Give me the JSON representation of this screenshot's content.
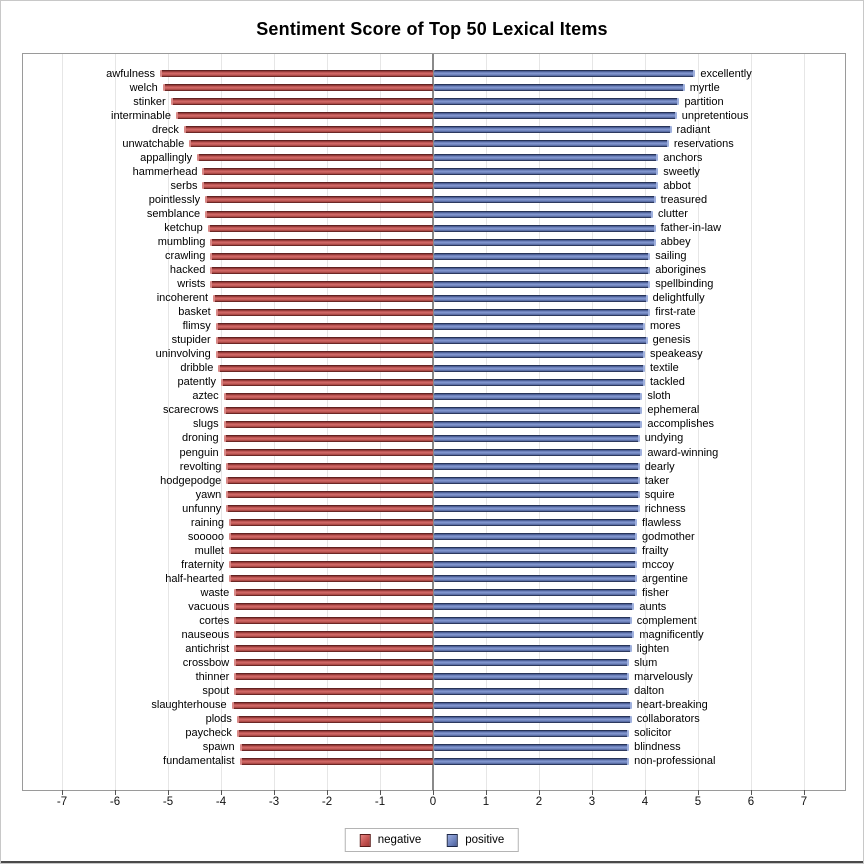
{
  "title": "Sentiment Score of Top 50 Lexical Items",
  "legend": {
    "items": [
      {
        "label": "negative",
        "color": "#c85a58"
      },
      {
        "label": "positive",
        "color": "#7388c4"
      }
    ]
  },
  "colors": {
    "negative_bar": "#c85a58",
    "positive_bar": "#7388c4",
    "zero_axis": "#8a8a8a",
    "gridline": "#e6e6e6"
  },
  "chart_data": {
    "type": "bar",
    "orientation": "horizontal-diverging",
    "title": "Sentiment Score of Top 50 Lexical Items",
    "xlabel": "",
    "ylabel": "",
    "xlim": [
      -7.75,
      7.8
    ],
    "grid": true,
    "legend_position": "bottom",
    "x_ticks": [
      -7,
      -6,
      -5,
      -4,
      -3,
      -2,
      -1,
      0,
      1,
      2,
      3,
      4,
      5,
      6,
      7
    ],
    "series": [
      {
        "name": "negative",
        "side": "left"
      },
      {
        "name": "positive",
        "side": "right"
      }
    ],
    "rows": [
      {
        "negative_word": "awfulness",
        "negative_value": -5.15,
        "positive_word": "excellently",
        "positive_value": 4.95
      },
      {
        "negative_word": "welch",
        "negative_value": -5.1,
        "positive_word": "myrtle",
        "positive_value": 4.75
      },
      {
        "negative_word": "stinker",
        "negative_value": -4.95,
        "positive_word": "partition",
        "positive_value": 4.65
      },
      {
        "negative_word": "interminable",
        "negative_value": -4.85,
        "positive_word": "unpretentious",
        "positive_value": 4.6
      },
      {
        "negative_word": "dreck",
        "negative_value": -4.7,
        "positive_word": "radiant",
        "positive_value": 4.5
      },
      {
        "negative_word": "unwatchable",
        "negative_value": -4.6,
        "positive_word": "reservations",
        "positive_value": 4.45
      },
      {
        "negative_word": "appallingly",
        "negative_value": -4.45,
        "positive_word": "anchors",
        "positive_value": 4.25
      },
      {
        "negative_word": "hammerhead",
        "negative_value": -4.35,
        "positive_word": "sweetly",
        "positive_value": 4.25
      },
      {
        "negative_word": "serbs",
        "negative_value": -4.35,
        "positive_word": "abbot",
        "positive_value": 4.25
      },
      {
        "negative_word": "pointlessly",
        "negative_value": -4.3,
        "positive_word": "treasured",
        "positive_value": 4.2
      },
      {
        "negative_word": "semblance",
        "negative_value": -4.3,
        "positive_word": "clutter",
        "positive_value": 4.15
      },
      {
        "negative_word": "ketchup",
        "negative_value": -4.25,
        "positive_word": "father-in-law",
        "positive_value": 4.2
      },
      {
        "negative_word": "mumbling",
        "negative_value": -4.2,
        "positive_word": "abbey",
        "positive_value": 4.2
      },
      {
        "negative_word": "crawling",
        "negative_value": -4.2,
        "positive_word": "sailing",
        "positive_value": 4.1
      },
      {
        "negative_word": "hacked",
        "negative_value": -4.2,
        "positive_word": "aborigines",
        "positive_value": 4.1
      },
      {
        "negative_word": "wrists",
        "negative_value": -4.2,
        "positive_word": "spellbinding",
        "positive_value": 4.1
      },
      {
        "negative_word": "incoherent",
        "negative_value": -4.15,
        "positive_word": "delightfully",
        "positive_value": 4.05
      },
      {
        "negative_word": "basket",
        "negative_value": -4.1,
        "positive_word": "first-rate",
        "positive_value": 4.1
      },
      {
        "negative_word": "flimsy",
        "negative_value": -4.1,
        "positive_word": "mores",
        "positive_value": 4.0
      },
      {
        "negative_word": "stupider",
        "negative_value": -4.1,
        "positive_word": "genesis",
        "positive_value": 4.05
      },
      {
        "negative_word": "uninvolving",
        "negative_value": -4.1,
        "positive_word": "speakeasy",
        "positive_value": 4.0
      },
      {
        "negative_word": "dribble",
        "negative_value": -4.05,
        "positive_word": "textile",
        "positive_value": 4.0
      },
      {
        "negative_word": "patently",
        "negative_value": -4.0,
        "positive_word": "tackled",
        "positive_value": 4.0
      },
      {
        "negative_word": "aztec",
        "negative_value": -3.95,
        "positive_word": "sloth",
        "positive_value": 3.95
      },
      {
        "negative_word": "scarecrows",
        "negative_value": -3.95,
        "positive_word": "ephemeral",
        "positive_value": 3.95
      },
      {
        "negative_word": "slugs",
        "negative_value": -3.95,
        "positive_word": "accomplishes",
        "positive_value": 3.95
      },
      {
        "negative_word": "droning",
        "negative_value": -3.95,
        "positive_word": "undying",
        "positive_value": 3.9
      },
      {
        "negative_word": "penguin",
        "negative_value": -3.95,
        "positive_word": "award-winning",
        "positive_value": 3.95
      },
      {
        "negative_word": "revolting",
        "negative_value": -3.9,
        "positive_word": "dearly",
        "positive_value": 3.9
      },
      {
        "negative_word": "hodgepodge",
        "negative_value": -3.9,
        "positive_word": "taker",
        "positive_value": 3.9
      },
      {
        "negative_word": "yawn",
        "negative_value": -3.9,
        "positive_word": "squire",
        "positive_value": 3.9
      },
      {
        "negative_word": "unfunny",
        "negative_value": -3.9,
        "positive_word": "richness",
        "positive_value": 3.9
      },
      {
        "negative_word": "raining",
        "negative_value": -3.85,
        "positive_word": "flawless",
        "positive_value": 3.85
      },
      {
        "negative_word": "sooooo",
        "negative_value": -3.85,
        "positive_word": "godmother",
        "positive_value": 3.85
      },
      {
        "negative_word": "mullet",
        "negative_value": -3.85,
        "positive_word": "frailty",
        "positive_value": 3.85
      },
      {
        "negative_word": "fraternity",
        "negative_value": -3.85,
        "positive_word": "mccoy",
        "positive_value": 3.85
      },
      {
        "negative_word": "half-hearted",
        "negative_value": -3.85,
        "positive_word": "argentine",
        "positive_value": 3.85
      },
      {
        "negative_word": "waste",
        "negative_value": -3.75,
        "positive_word": "fisher",
        "positive_value": 3.85
      },
      {
        "negative_word": "vacuous",
        "negative_value": -3.75,
        "positive_word": "aunts",
        "positive_value": 3.8
      },
      {
        "negative_word": "cortes",
        "negative_value": -3.75,
        "positive_word": "complement",
        "positive_value": 3.75
      },
      {
        "negative_word": "nauseous",
        "negative_value": -3.75,
        "positive_word": "magnificently",
        "positive_value": 3.8
      },
      {
        "negative_word": "antichrist",
        "negative_value": -3.75,
        "positive_word": "lighten",
        "positive_value": 3.75
      },
      {
        "negative_word": "crossbow",
        "negative_value": -3.75,
        "positive_word": "slum",
        "positive_value": 3.7
      },
      {
        "negative_word": "thinner",
        "negative_value": -3.75,
        "positive_word": "marvelously",
        "positive_value": 3.7
      },
      {
        "negative_word": "spout",
        "negative_value": -3.75,
        "positive_word": "dalton",
        "positive_value": 3.7
      },
      {
        "negative_word": "slaughterhouse",
        "negative_value": -3.8,
        "positive_word": "heart-breaking",
        "positive_value": 3.75
      },
      {
        "negative_word": "plods",
        "negative_value": -3.7,
        "positive_word": "collaborators",
        "positive_value": 3.75
      },
      {
        "negative_word": "paycheck",
        "negative_value": -3.7,
        "positive_word": "solicitor",
        "positive_value": 3.7
      },
      {
        "negative_word": "spawn",
        "negative_value": -3.65,
        "positive_word": "blindness",
        "positive_value": 3.7
      },
      {
        "negative_word": "fundamentalist",
        "negative_value": -3.65,
        "positive_word": "non-professional",
        "positive_value": 3.7
      }
    ]
  }
}
